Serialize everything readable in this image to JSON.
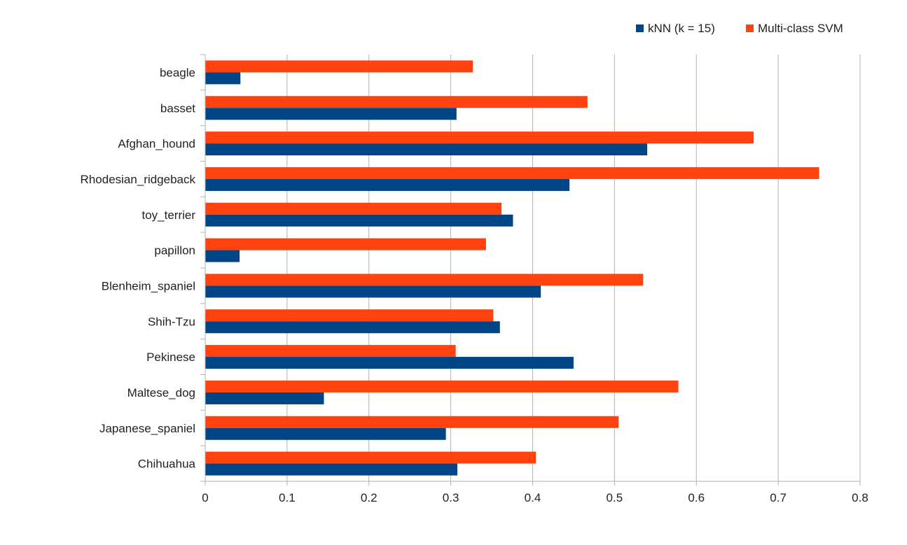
{
  "chart_data": {
    "type": "bar",
    "orientation": "horizontal",
    "title": "",
    "xlabel": "",
    "ylabel": "",
    "categories": [
      "beagle",
      "basset",
      "Afghan_hound",
      "Rhodesian_ridgeback",
      "toy_terrier",
      "papillon",
      "Blenheim_spaniel",
      "Shih-Tzu",
      "Pekinese",
      "Maltese_dog",
      "Japanese_spaniel",
      "Chihuahua"
    ],
    "series": [
      {
        "name": "kNN (k = 15)",
        "color": "#004586",
        "values": [
          0.043,
          0.307,
          0.54,
          0.445,
          0.376,
          0.042,
          0.41,
          0.36,
          0.45,
          0.145,
          0.294,
          0.308
        ]
      },
      {
        "name": "Multi-class SVM",
        "color": "#ff420e",
        "values": [
          0.327,
          0.467,
          0.67,
          0.75,
          0.362,
          0.343,
          0.535,
          0.352,
          0.306,
          0.578,
          0.505,
          0.404
        ]
      }
    ],
    "xlim": [
      0,
      0.8
    ],
    "x_ticks": [
      "0",
      "0.1",
      "0.2",
      "0.3",
      "0.4",
      "0.5",
      "0.6",
      "0.7",
      "0.8"
    ],
    "grid": "vertical",
    "legend_position": "top-right",
    "colors": {
      "grid": "#b3b3b3",
      "axis": "#b3b3b3",
      "text": "#222222"
    }
  }
}
